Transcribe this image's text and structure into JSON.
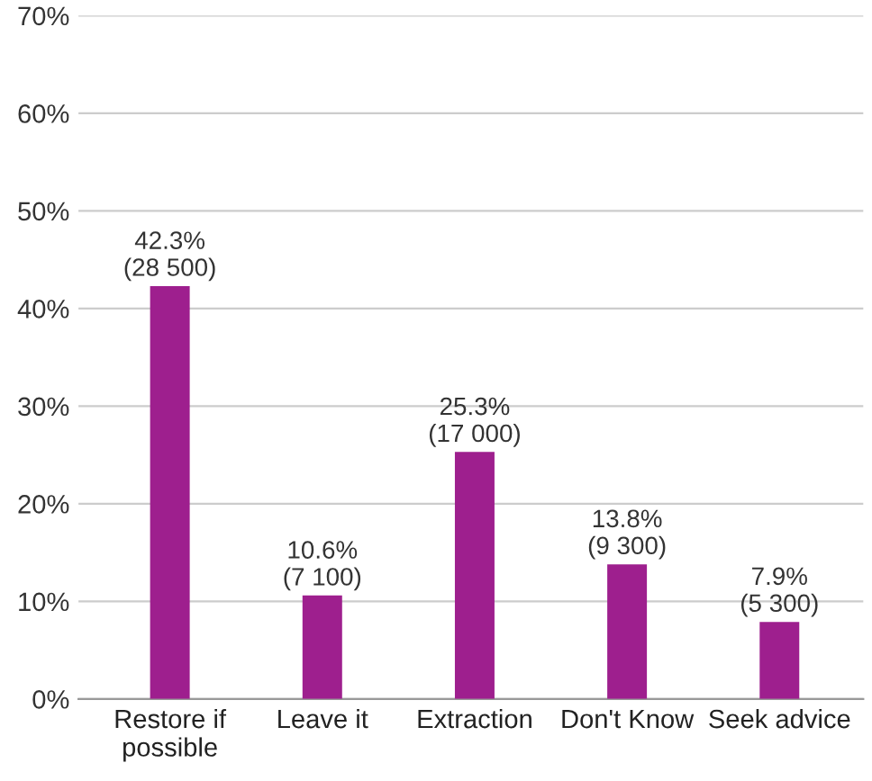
{
  "chart_data": {
    "type": "bar",
    "categories": [
      "Restore if\npossible",
      "Leave it",
      "Extraction",
      "Don't Know",
      "Seek advice"
    ],
    "values": [
      42.3,
      10.6,
      25.3,
      13.8,
      7.9
    ],
    "value_labels": [
      "42.3%\n(28 500)",
      "10.6%\n(7 100)",
      "25.3%\n(17 000)",
      "13.8%\n(9 300)",
      "7.9%\n(5 300)"
    ],
    "color": "#9e1f8e",
    "ylim": [
      0,
      70
    ],
    "yticks": [
      {
        "value": 0,
        "label": "0%"
      },
      {
        "value": 10,
        "label": "10%"
      },
      {
        "value": 20,
        "label": "20%"
      },
      {
        "value": 30,
        "label": "30%"
      },
      {
        "value": 40,
        "label": "40%"
      },
      {
        "value": 50,
        "label": "50%"
      },
      {
        "value": 60,
        "label": "60%"
      },
      {
        "value": 70,
        "label": "70%"
      }
    ],
    "grid": "y"
  }
}
